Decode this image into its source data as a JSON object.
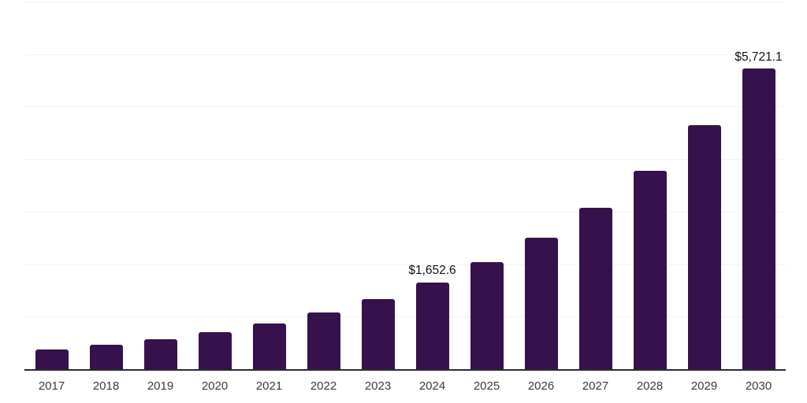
{
  "chart_data": {
    "type": "bar",
    "title": "",
    "xlabel": "",
    "ylabel": "",
    "categories": [
      "2017",
      "2018",
      "2019",
      "2020",
      "2021",
      "2022",
      "2023",
      "2024",
      "2025",
      "2026",
      "2027",
      "2028",
      "2029",
      "2030"
    ],
    "values": [
      371,
      459,
      568,
      704,
      871,
      1078,
      1335,
      1652.6,
      2035,
      2500,
      3070,
      3780,
      4645,
      5721.1
    ],
    "bar_labels": [
      null,
      null,
      null,
      null,
      null,
      null,
      null,
      "$1,652.6",
      null,
      null,
      null,
      null,
      null,
      "$5,721.1"
    ],
    "ylim": [
      0,
      7000
    ],
    "gridline_step": 1000,
    "grid": true,
    "legend": "none",
    "colors": {
      "bar": "#36114E",
      "gridline": "#f2f2f2",
      "axis_line": "#2b2b2b",
      "data_label_text": "#111111",
      "tick_label_text": "#3b3b3b",
      "background": "#ffffff"
    }
  }
}
